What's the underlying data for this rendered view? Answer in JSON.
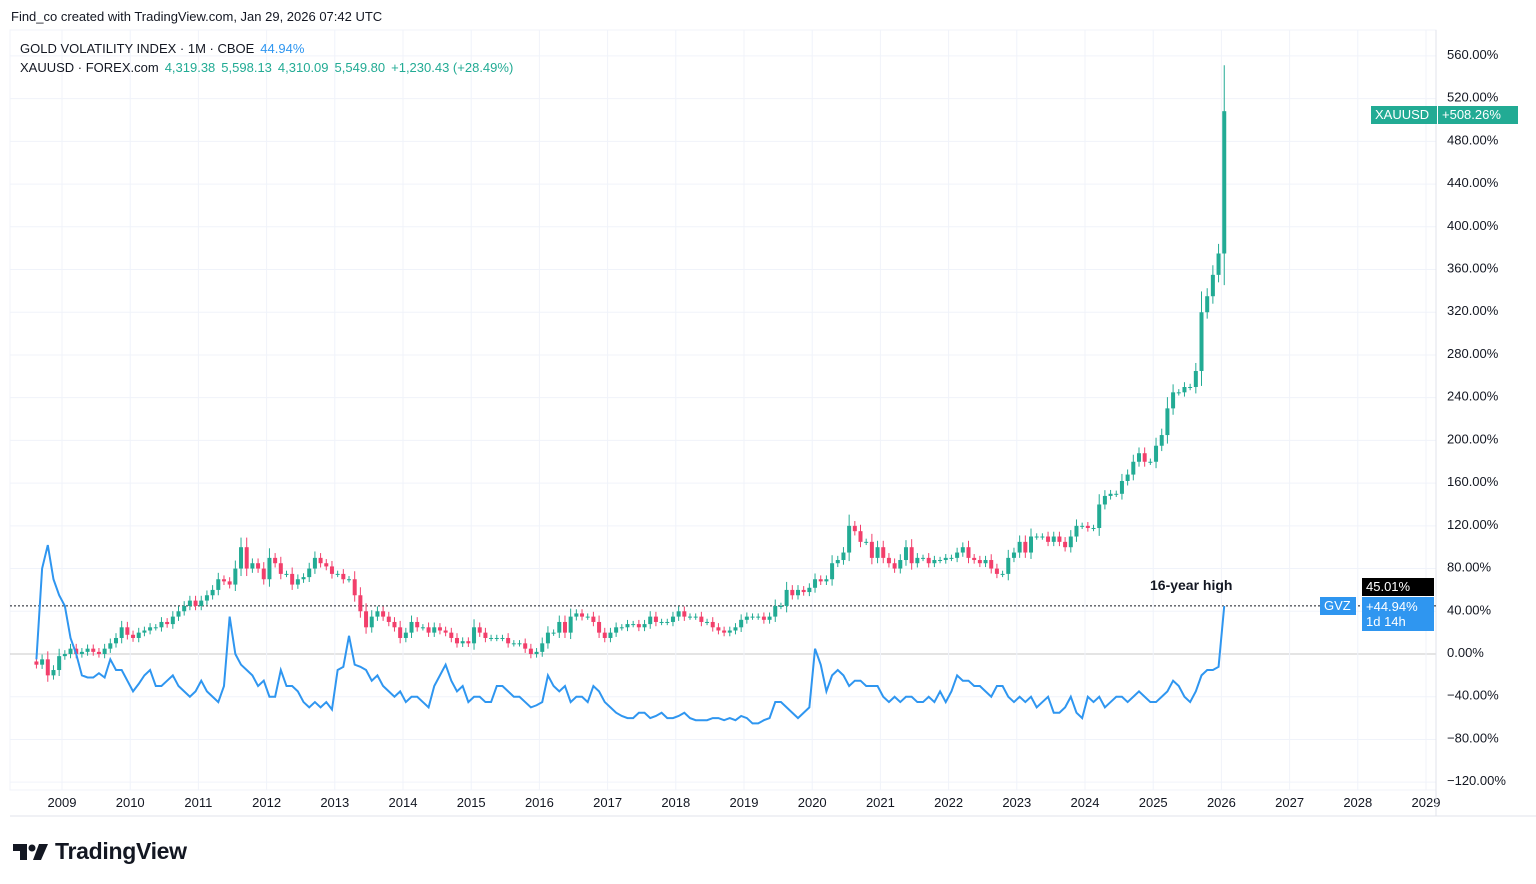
{
  "credit": "Find_co created with TradingView.com, Jan 29, 2026 07:42 UTC",
  "legend": {
    "gvz_title": "GOLD VOLATILITY INDEX · 1M · CBOE",
    "gvz_value": "44.94%",
    "xau_title": "XAUUSD · FOREX.com",
    "xau_open": "4,319.38",
    "xau_high": "5,598.13",
    "xau_low": "4,310.09",
    "xau_close": "5,549.80",
    "xau_change": "+1,230.43 (+28.49%)"
  },
  "labels": {
    "xau_tag": "XAUUSD",
    "xau_value": "+508.26%",
    "crosshair_value": "45.01%",
    "gvz_tag": "GVZ",
    "gvz_value": "+44.94%",
    "gvz_countdown": "1d 14h",
    "annotation": "16-year high"
  },
  "logo": "TradingView",
  "colors": {
    "up": "#22ab94",
    "down": "#f23f6b",
    "gvz": "#2f96f0",
    "grid": "#f0f3fa"
  },
  "chart_data": {
    "type": "line",
    "y_axis": {
      "unit": "%",
      "ylim": [
        -120,
        560
      ],
      "ticks": [
        "560.00%",
        "520.00%",
        "480.00%",
        "440.00%",
        "400.00%",
        "360.00%",
        "320.00%",
        "280.00%",
        "240.00%",
        "200.00%",
        "160.00%",
        "120.00%",
        "80.00%",
        "40.00%",
        "0.00%",
        "−40.00%",
        "−80.00%",
        "−120.00%"
      ],
      "tick_values": [
        560,
        520,
        480,
        440,
        400,
        360,
        320,
        280,
        240,
        200,
        160,
        120,
        80,
        40,
        0,
        -40,
        -80,
        -120
      ],
      "position": "right"
    },
    "x_axis": {
      "ticks": [
        "2009",
        "2010",
        "2011",
        "2012",
        "2013",
        "2014",
        "2015",
        "2016",
        "2017",
        "2018",
        "2019",
        "2020",
        "2021",
        "2022",
        "2023",
        "2024",
        "2025",
        "2026",
        "2027",
        "2028",
        "2029"
      ]
    },
    "start": "2008-08",
    "interval": "1M",
    "grid": true,
    "series": [
      {
        "name": "XAUUSD",
        "kind": "candlestick",
        "closes_pct": [
          -10,
          -5,
          -20,
          -15,
          -2,
          0,
          5,
          0,
          2,
          5,
          2,
          0,
          5,
          10,
          15,
          25,
          18,
          15,
          20,
          22,
          25,
          25,
          30,
          28,
          35,
          40,
          45,
          50,
          45,
          50,
          55,
          60,
          70,
          68,
          65,
          80,
          100,
          80,
          85,
          80,
          70,
          90,
          85,
          75,
          75,
          65,
          70,
          72,
          80,
          90,
          85,
          82,
          75,
          75,
          70,
          70,
          55,
          40,
          25,
          35,
          40,
          35,
          30,
          25,
          15,
          20,
          30,
          25,
          25,
          20,
          25,
          22,
          20,
          15,
          10,
          12,
          10,
          25,
          20,
          15,
          15,
          15,
          15,
          10,
          10,
          10,
          5,
          0,
          2,
          10,
          20,
          20,
          30,
          20,
          35,
          38,
          35,
          35,
          30,
          20,
          15,
          20,
          25,
          25,
          28,
          28,
          25,
          28,
          35,
          30,
          30,
          30,
          35,
          40,
          35,
          35,
          35,
          30,
          30,
          25,
          22,
          20,
          22,
          25,
          32,
          35,
          35,
          35,
          32,
          35,
          45,
          45,
          60,
          55,
          60,
          58,
          62,
          70,
          68,
          70,
          85,
          88,
          95,
          120,
          115,
          105,
          105,
          90,
          100,
          90,
          85,
          80,
          88,
          100,
          85,
          90,
          90,
          85,
          88,
          88,
          90,
          90,
          95,
          100,
          90,
          88,
          85,
          88,
          80,
          75,
          75,
          90,
          95,
          105,
          95,
          110,
          110,
          110,
          105,
          110,
          105,
          100,
          110,
          120,
          120,
          118,
          118,
          140,
          148,
          150,
          150,
          162,
          168,
          180,
          188,
          180,
          180,
          195,
          205,
          230,
          245,
          245,
          250,
          250,
          265,
          320,
          335,
          355,
          375,
          508.26
        ]
      },
      {
        "name": "GVZ",
        "kind": "line",
        "values_pct": [
          -5,
          80,
          102,
          70,
          55,
          45,
          15,
          0,
          -20,
          -22,
          -22,
          -18,
          -22,
          -5,
          -15,
          -15,
          -25,
          -35,
          -28,
          -20,
          -15,
          -30,
          -30,
          -25,
          -20,
          -30,
          -35,
          -40,
          -35,
          -25,
          -35,
          -40,
          -45,
          -30,
          35,
          0,
          -10,
          -15,
          -20,
          -30,
          -25,
          -40,
          -40,
          -15,
          -30,
          -30,
          -35,
          -45,
          -50,
          -45,
          -50,
          -45,
          -52,
          -15,
          -12,
          17,
          -10,
          -12,
          -15,
          -25,
          -20,
          -30,
          -35,
          -40,
          -35,
          -45,
          -40,
          -40,
          -45,
          -50,
          -30,
          -20,
          -10,
          -25,
          -35,
          -30,
          -45,
          -40,
          -40,
          -45,
          -45,
          -30,
          -30,
          -35,
          -40,
          -40,
          -45,
          -50,
          -48,
          -45,
          -20,
          -30,
          -35,
          -30,
          -45,
          -40,
          -40,
          -45,
          -30,
          -35,
          -45,
          -50,
          -55,
          -58,
          -60,
          -60,
          -55,
          -55,
          -60,
          -58,
          -55,
          -60,
          -60,
          -58,
          -55,
          -60,
          -62,
          -62,
          -62,
          -60,
          -60,
          -62,
          -60,
          -62,
          -58,
          -60,
          -65,
          -65,
          -62,
          -60,
          -45,
          -45,
          -50,
          -55,
          -60,
          -55,
          -50,
          5,
          -10,
          -35,
          -20,
          -15,
          -20,
          -30,
          -25,
          -25,
          -30,
          -30,
          -30,
          -40,
          -45,
          -40,
          -45,
          -40,
          -40,
          -45,
          -45,
          -40,
          -45,
          -35,
          -45,
          -35,
          -20,
          -25,
          -25,
          -30,
          -30,
          -35,
          -40,
          -30,
          -30,
          -40,
          -45,
          -40,
          -45,
          -40,
          -50,
          -45,
          -40,
          -55,
          -55,
          -50,
          -40,
          -55,
          -60,
          -40,
          -45,
          -40,
          -50,
          -45,
          -40,
          -40,
          -45,
          -40,
          -35,
          -40,
          -45,
          -45,
          -40,
          -35,
          -25,
          -30,
          -40,
          -45,
          -35,
          -20,
          -15,
          -15,
          -12,
          44.94
        ]
      }
    ],
    "annotations": [
      {
        "text": "16-year high",
        "date": "2026-01",
        "value": 45
      }
    ],
    "reference_line": 45.01
  }
}
